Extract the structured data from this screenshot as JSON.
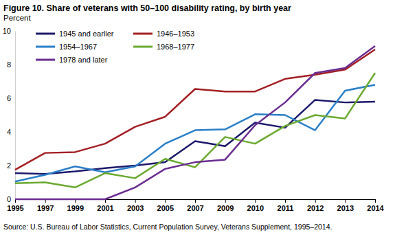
{
  "chart_data": {
    "type": "line",
    "title": "Figure 10. Share of veterans with 50–100 disability rating, by birth year",
    "y_label": "Percent",
    "source": "Source: U.S. Bureau of Labor Statistics, Current Population Survey, Veterans Supplement, 1995–2014.",
    "categories": [
      "1995",
      "1997",
      "1999",
      "2001",
      "2003",
      "2005",
      "2007",
      "2009",
      "2010",
      "2011",
      "2012",
      "2013",
      "2014"
    ],
    "series": [
      {
        "name": "1945 and earlier",
        "color": "#1c1a6b",
        "values": [
          1.55,
          1.5,
          1.65,
          1.85,
          2.0,
          2.2,
          3.45,
          3.15,
          4.55,
          4.25,
          5.9,
          5.75,
          5.8
        ]
      },
      {
        "name": "1946–1953",
        "color": "#a31f24",
        "values": [
          1.75,
          2.75,
          2.8,
          3.3,
          4.3,
          4.9,
          6.55,
          6.4,
          6.4,
          7.15,
          7.4,
          7.7,
          8.9
        ]
      },
      {
        "name": "1954–1967",
        "color": "#2b7fc8",
        "values": [
          1.05,
          1.45,
          1.95,
          1.6,
          1.95,
          3.3,
          4.1,
          4.15,
          5.05,
          5.0,
          4.1,
          6.45,
          6.8
        ]
      },
      {
        "name": "1968–1977",
        "color": "#6aa92f",
        "values": [
          0.95,
          1.0,
          0.7,
          1.55,
          1.25,
          2.4,
          1.9,
          3.7,
          3.3,
          4.35,
          5.0,
          4.8,
          7.5
        ]
      },
      {
        "name": "1978 and later",
        "color": "#6a2c90",
        "values": [
          0,
          0,
          0,
          0,
          0.7,
          1.8,
          2.2,
          2.35,
          4.4,
          5.75,
          7.5,
          7.8,
          9.1
        ]
      }
    ],
    "ylim": [
      0,
      10
    ],
    "yticks": [
      0,
      2,
      4,
      6,
      8,
      10
    ],
    "grid": false,
    "legend": "upper left"
  }
}
